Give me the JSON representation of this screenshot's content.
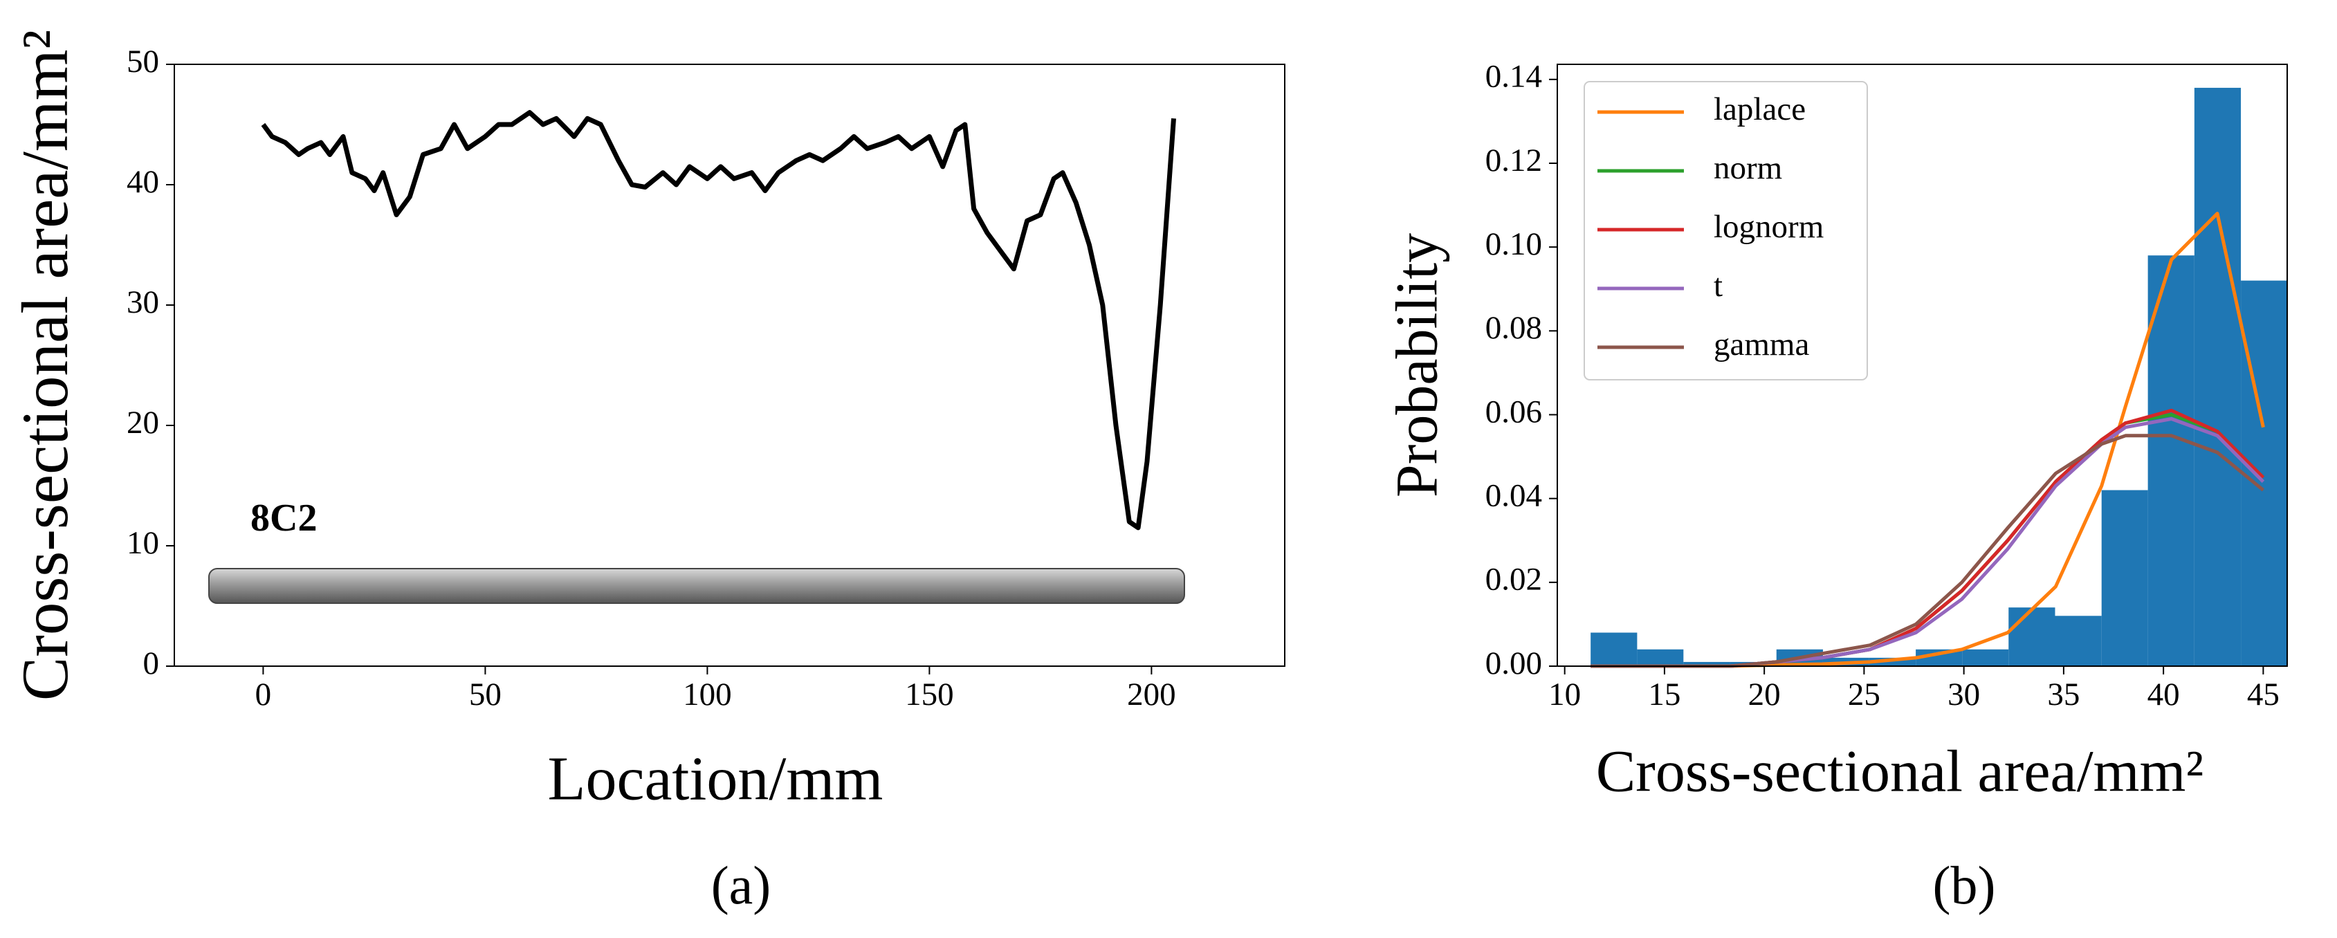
{
  "chart_data": [
    {
      "type": "line",
      "caption": "(a)",
      "xlabel": "Location/mm",
      "ylabel": "Cross-sectional area/mm²",
      "annotation": "8C2",
      "color": "#000000",
      "x": [
        0,
        2,
        5,
        8,
        10,
        13,
        15,
        18,
        20,
        23,
        25,
        27,
        30,
        33,
        36,
        40,
        43,
        46,
        50,
        53,
        56,
        60,
        63,
        66,
        70,
        73,
        76,
        80,
        83,
        86,
        90,
        93,
        96,
        100,
        103,
        106,
        110,
        113,
        116,
        120,
        123,
        126,
        130,
        133,
        136,
        140,
        143,
        146,
        150,
        153,
        156,
        158,
        160,
        163,
        166,
        169,
        172,
        175,
        178,
        180,
        183,
        186,
        189,
        192,
        195,
        197,
        199,
        202,
        205
      ],
      "values": [
        45,
        44,
        43.5,
        42.5,
        43,
        43.5,
        42.5,
        44,
        41,
        40.5,
        39.5,
        41,
        37.5,
        39,
        42.5,
        43,
        45,
        43,
        44,
        45,
        45,
        46,
        45,
        45.5,
        44,
        45.5,
        45,
        42,
        40,
        39.8,
        41,
        40,
        41.5,
        40.5,
        41.5,
        40.5,
        41,
        39.5,
        41,
        42,
        42.5,
        42,
        43,
        44,
        43,
        43.5,
        44,
        43,
        44,
        41.5,
        44.5,
        45,
        38,
        36,
        34.5,
        33,
        37,
        37.5,
        40.5,
        41,
        38.5,
        35,
        30,
        20,
        12,
        11.5,
        17,
        30,
        45.5
      ],
      "xlim": [
        -20,
        230
      ],
      "ylim": [
        0,
        50
      ],
      "xticks": [
        0,
        50,
        100,
        150,
        200
      ],
      "yticks": [
        0,
        10,
        20,
        30,
        40,
        50
      ]
    },
    {
      "type": "histogram",
      "caption": "(b)",
      "xlabel": "Cross-sectional area/mm²",
      "ylabel": "Probability",
      "legend": "upper left",
      "color": "#1f77b4",
      "bins": [
        11.3,
        13.63,
        15.95,
        18.28,
        20.61,
        22.94,
        25.26,
        27.59,
        29.92,
        32.24,
        34.57,
        36.9,
        39.22,
        41.55,
        43.88,
        46.2
      ],
      "values": [
        0.008,
        0.004,
        0.001,
        0.001,
        0.004,
        0.002,
        0.002,
        0.004,
        0.004,
        0.014,
        0.012,
        0.042,
        0.098,
        0.138,
        0.092
      ],
      "x": [
        11.3,
        13.6,
        16,
        18.3,
        20.6,
        22.9,
        25.3,
        27.6,
        29.9,
        32.2,
        34.6,
        36.9,
        38.1,
        40.4,
        42.7,
        45
      ],
      "series": [
        {
          "name": "laplace",
          "color": "#ff7f0e",
          "values": [
            0,
            0,
            0,
            0,
            0.0003,
            0.0005,
            0.001,
            0.002,
            0.004,
            0.008,
            0.019,
            0.043,
            0.062,
            0.097,
            0.108,
            0.057
          ]
        },
        {
          "name": "norm",
          "color": "#2ca02c",
          "values": [
            0,
            0,
            0,
            0,
            0.001,
            0.002,
            0.004,
            0.009,
            0.018,
            0.03,
            0.044,
            0.054,
            0.058,
            0.06,
            0.056,
            0.045
          ]
        },
        {
          "name": "lognorm",
          "color": "#d62728",
          "values": [
            0,
            0,
            0,
            0,
            0.001,
            0.002,
            0.004,
            0.009,
            0.018,
            0.03,
            0.044,
            0.054,
            0.058,
            0.061,
            0.056,
            0.045
          ]
        },
        {
          "name": "t",
          "color": "#9467bd",
          "values": [
            0,
            0,
            0,
            0,
            0.001,
            0.002,
            0.004,
            0.008,
            0.016,
            0.028,
            0.043,
            0.053,
            0.057,
            0.059,
            0.055,
            0.044
          ]
        },
        {
          "name": "gamma",
          "color": "#8c564b",
          "values": [
            0,
            0,
            0,
            0,
            0.001,
            0.003,
            0.005,
            0.01,
            0.02,
            0.033,
            0.046,
            0.053,
            0.055,
            0.055,
            0.051,
            0.042
          ]
        }
      ],
      "xlim": [
        9.63,
        46.2
      ],
      "ylim": [
        0,
        0.1436
      ],
      "xticks": [
        10,
        15,
        20,
        25,
        30,
        35,
        40,
        45
      ],
      "yticks": [
        {
          "value": 0,
          "label": "0.00"
        },
        0.02,
        0.04,
        0.06,
        0.08,
        {
          "value": 0.1,
          "label": "0.10"
        },
        0.12,
        0.14
      ]
    }
  ]
}
